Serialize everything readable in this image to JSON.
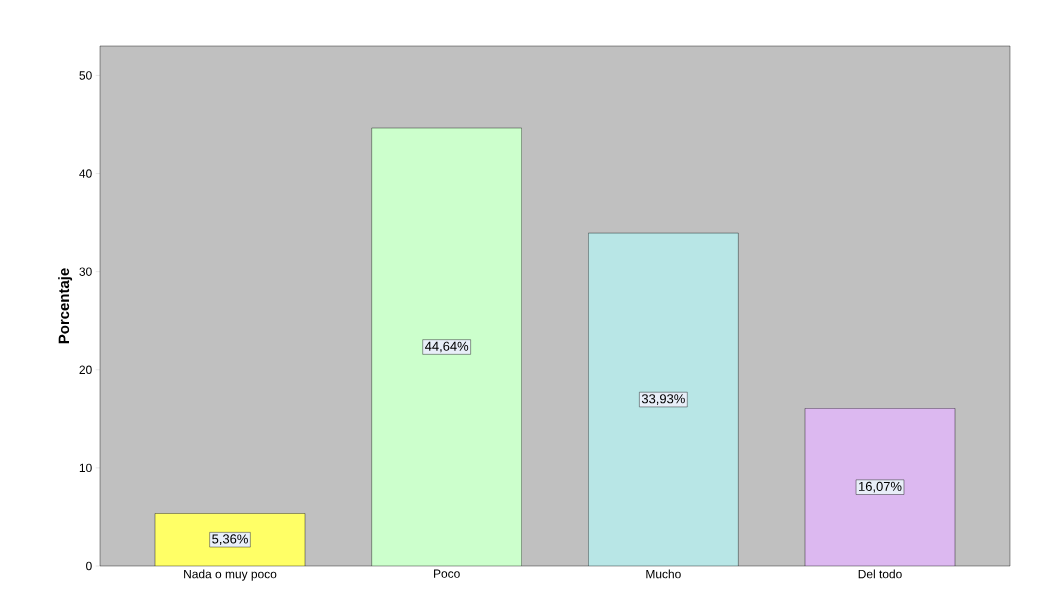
{
  "chart_data": {
    "type": "bar",
    "ylabel": "Porcentaje",
    "categories": [
      "Nada o muy poco",
      "Poco",
      "Mucho",
      "Del todo"
    ],
    "values": [
      5.36,
      44.64,
      33.93,
      16.07
    ],
    "colors": [
      "#ffff66",
      "#ccffcc",
      "#b8e6e6",
      "#dcb8f0"
    ],
    "value_labels": [
      "5,36%",
      "44,64%",
      "33,93%",
      "16,07%"
    ],
    "ylim": [
      0,
      53
    ],
    "yticks": [
      0,
      10,
      20,
      30,
      40,
      50
    ]
  }
}
